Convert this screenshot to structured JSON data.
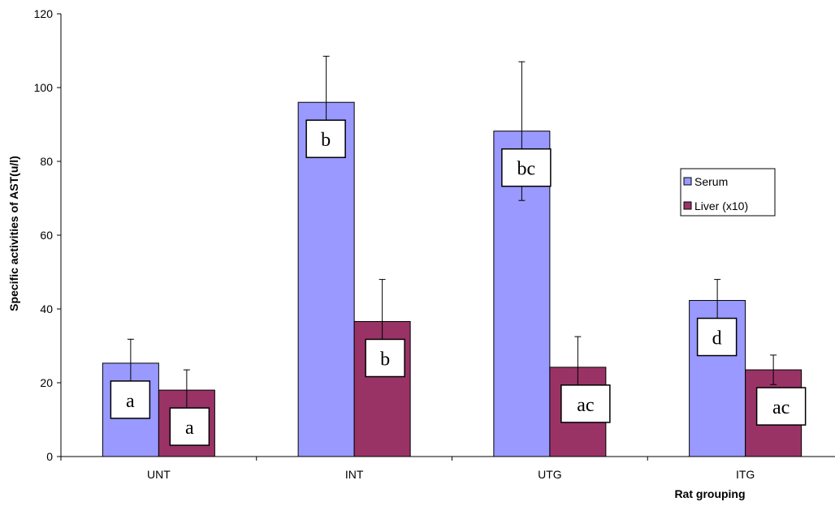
{
  "chart_data": {
    "type": "bar",
    "title": "",
    "xlabel": "Rat grouping",
    "ylabel": "Specific activities of AST(u/l)",
    "ylim": [
      0,
      120
    ],
    "yticks": [
      0,
      20,
      40,
      60,
      80,
      100,
      120
    ],
    "categories": [
      "UNT",
      "INT",
      "UTG",
      "ITG"
    ],
    "series": [
      {
        "name": "Serum",
        "color": "#9999ff",
        "values": [
          25.3,
          96,
          88.2,
          42.3
        ],
        "error": [
          6.5,
          12.5,
          18.8,
          5.7
        ],
        "letters": [
          "a",
          "b",
          "bc",
          "d"
        ]
      },
      {
        "name": "Liver (x10)",
        "color": "#993366",
        "values": [
          18,
          36.6,
          24.2,
          23.5
        ],
        "error": [
          5.5,
          11.4,
          8.3,
          4
        ]
      }
    ],
    "liver_letters": [
      "a",
      "b",
      "ac",
      "ac"
    ],
    "grid": false,
    "legend_position": "right"
  }
}
